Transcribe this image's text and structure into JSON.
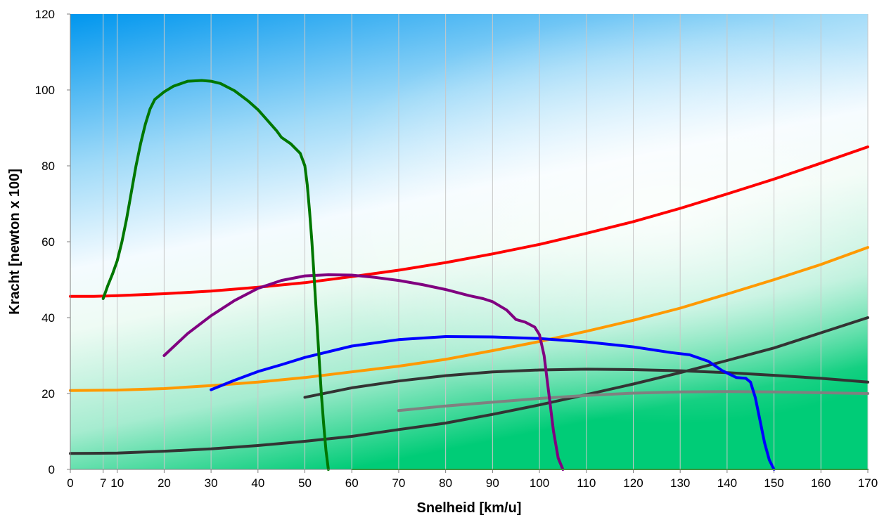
{
  "chart_data": {
    "type": "line",
    "xlabel": "Snelheid [km/u]",
    "ylabel": "Kracht [newton x 100]",
    "xlim": [
      0,
      170
    ],
    "ylim": [
      0,
      120
    ],
    "x_ticks": [
      0,
      7,
      10,
      20,
      30,
      40,
      50,
      60,
      70,
      80,
      90,
      100,
      110,
      120,
      130,
      140,
      150,
      160,
      170
    ],
    "y_ticks": [
      0,
      20,
      40,
      60,
      80,
      100,
      120
    ],
    "grid": true,
    "legend": "none",
    "background": "sky-to-green gradient",
    "series": [
      {
        "color": "#ff0000",
        "width": 4,
        "points": [
          [
            0,
            45.6
          ],
          [
            5,
            45.6
          ],
          [
            10,
            45.8
          ],
          [
            20,
            46.3
          ],
          [
            30,
            47
          ],
          [
            40,
            48
          ],
          [
            50,
            49.2
          ],
          [
            60,
            50.8
          ],
          [
            70,
            52.5
          ],
          [
            80,
            54.5
          ],
          [
            90,
            56.8
          ],
          [
            100,
            59.3
          ],
          [
            110,
            62.2
          ],
          [
            120,
            65.3
          ],
          [
            130,
            68.8
          ],
          [
            140,
            72.6
          ],
          [
            150,
            76.5
          ],
          [
            160,
            80.7
          ],
          [
            170,
            85
          ]
        ]
      },
      {
        "color": "#ff9900",
        "width": 4,
        "points": [
          [
            0,
            20.8
          ],
          [
            10,
            20.9
          ],
          [
            20,
            21.3
          ],
          [
            30,
            22.1
          ],
          [
            40,
            23
          ],
          [
            50,
            24.2
          ],
          [
            60,
            25.7
          ],
          [
            70,
            27.2
          ],
          [
            80,
            29
          ],
          [
            90,
            31.3
          ],
          [
            100,
            33.7
          ],
          [
            110,
            36.4
          ],
          [
            120,
            39.3
          ],
          [
            130,
            42.5
          ],
          [
            140,
            46.2
          ],
          [
            150,
            50
          ],
          [
            160,
            54
          ],
          [
            170,
            58.5
          ]
        ]
      },
      {
        "color": "#333333",
        "width": 4,
        "points": [
          [
            0,
            4.2
          ],
          [
            10,
            4.3
          ],
          [
            20,
            4.8
          ],
          [
            30,
            5.4
          ],
          [
            40,
            6.3
          ],
          [
            50,
            7.4
          ],
          [
            60,
            8.7
          ],
          [
            70,
            10.5
          ],
          [
            80,
            12.2
          ],
          [
            90,
            14.5
          ],
          [
            100,
            17
          ],
          [
            110,
            19.7
          ],
          [
            120,
            22.5
          ],
          [
            130,
            25.5
          ],
          [
            140,
            28.7
          ],
          [
            150,
            32
          ],
          [
            160,
            36
          ],
          [
            170,
            40
          ]
        ]
      },
      {
        "color": "#333333",
        "width": 4,
        "points": [
          [
            50,
            19
          ],
          [
            60,
            21.5
          ],
          [
            70,
            23.3
          ],
          [
            80,
            24.7
          ],
          [
            90,
            25.7
          ],
          [
            100,
            26.2
          ],
          [
            110,
            26.4
          ],
          [
            120,
            26.3
          ],
          [
            130,
            26
          ],
          [
            140,
            25.5
          ],
          [
            150,
            24.8
          ],
          [
            160,
            24
          ],
          [
            170,
            23
          ]
        ]
      },
      {
        "color": "#808080",
        "width": 4,
        "points": [
          [
            70,
            15.5
          ],
          [
            80,
            16.7
          ],
          [
            90,
            17.7
          ],
          [
            100,
            18.7
          ],
          [
            110,
            19.5
          ],
          [
            120,
            20.1
          ],
          [
            130,
            20.4
          ],
          [
            140,
            20.5
          ],
          [
            150,
            20.4
          ],
          [
            160,
            20.2
          ],
          [
            170,
            20
          ]
        ]
      },
      {
        "color": "#0000ff",
        "width": 4,
        "points": [
          [
            30,
            21
          ],
          [
            35,
            23.5
          ],
          [
            40,
            25.8
          ],
          [
            45,
            27.6
          ],
          [
            50,
            29.5
          ],
          [
            60,
            32.5
          ],
          [
            70,
            34.2
          ],
          [
            80,
            35
          ],
          [
            90,
            34.9
          ],
          [
            100,
            34.5
          ],
          [
            110,
            33.6
          ],
          [
            120,
            32.3
          ],
          [
            128,
            30.8
          ],
          [
            132,
            30.2
          ],
          [
            136,
            28.5
          ],
          [
            139,
            26
          ],
          [
            142,
            24.2
          ],
          [
            144,
            24
          ],
          [
            145,
            23
          ],
          [
            146,
            19
          ],
          [
            147,
            13
          ],
          [
            148,
            7
          ],
          [
            149,
            2.5
          ],
          [
            150,
            0
          ]
        ]
      },
      {
        "color": "#0000ff",
        "width": 2,
        "points": [
          [
            155,
            0
          ],
          [
            170,
            0
          ]
        ]
      },
      {
        "color": "#800080",
        "width": 4,
        "points": [
          [
            20,
            30
          ],
          [
            25,
            35.8
          ],
          [
            30,
            40.5
          ],
          [
            35,
            44.5
          ],
          [
            40,
            47.7
          ],
          [
            45,
            49.8
          ],
          [
            50,
            51
          ],
          [
            55,
            51.3
          ],
          [
            60,
            51.2
          ],
          [
            65,
            50.6
          ],
          [
            70,
            49.8
          ],
          [
            75,
            48.7
          ],
          [
            80,
            47.4
          ],
          [
            85,
            45.8
          ],
          [
            88,
            45
          ],
          [
            90,
            44.2
          ],
          [
            93,
            42
          ],
          [
            95,
            39.5
          ],
          [
            97,
            38.8
          ],
          [
            99,
            37.5
          ],
          [
            100,
            35.5
          ],
          [
            101,
            30
          ],
          [
            102,
            20
          ],
          [
            103,
            10
          ],
          [
            104,
            3
          ],
          [
            105,
            0
          ]
        ]
      },
      {
        "color": "#007700",
        "width": 4,
        "points": [
          [
            7,
            45
          ],
          [
            8,
            48.5
          ],
          [
            9,
            51.5
          ],
          [
            10,
            55
          ],
          [
            11,
            60
          ],
          [
            12,
            66
          ],
          [
            13,
            73
          ],
          [
            14,
            80
          ],
          [
            15,
            86
          ],
          [
            16,
            91
          ],
          [
            17,
            95
          ],
          [
            18,
            97.5
          ],
          [
            20,
            99.5
          ],
          [
            22,
            101
          ],
          [
            25,
            102.3
          ],
          [
            28,
            102.5
          ],
          [
            30,
            102.3
          ],
          [
            32,
            101.7
          ],
          [
            35,
            99.8
          ],
          [
            38,
            97
          ],
          [
            40,
            94.8
          ],
          [
            42,
            92
          ],
          [
            44,
            89.2
          ],
          [
            45,
            87.5
          ],
          [
            47,
            85.8
          ],
          [
            49,
            83.3
          ],
          [
            50,
            80
          ],
          [
            50.5,
            75
          ],
          [
            51,
            68
          ],
          [
            51.5,
            60
          ],
          [
            52,
            50
          ],
          [
            52.5,
            40
          ],
          [
            53,
            30
          ],
          [
            53.5,
            20
          ],
          [
            54,
            12
          ],
          [
            54.5,
            5
          ],
          [
            55,
            0
          ]
        ]
      },
      {
        "color": "#00aa00",
        "width": 2,
        "points": [
          [
            60,
            0
          ],
          [
            170,
            0
          ]
        ]
      }
    ]
  },
  "colors": {
    "sky_top": "#0096ee",
    "sky_light": "#bfe6fb",
    "green_light": "#dcf6ea",
    "green_bottom": "#00cc77"
  }
}
